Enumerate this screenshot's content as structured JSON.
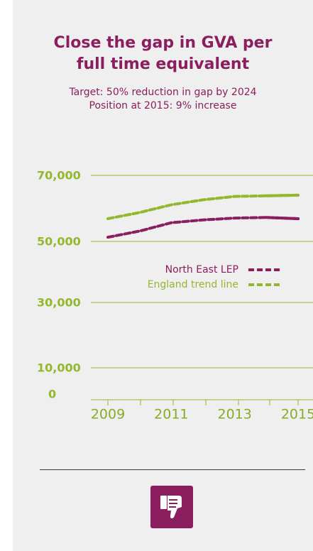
{
  "header": {
    "title_line1": "Close the gap in GVA per",
    "title_line2": "full time equivalent",
    "target_line": "Target: 50% reduction in gap by 2024",
    "position_line": "Position at 2015: 9% increase"
  },
  "chart_data": {
    "type": "line",
    "x": [
      2009,
      2010,
      2011,
      2012,
      2013,
      2014,
      2015
    ],
    "x_tick_labels": [
      "2009",
      "2011",
      "2013",
      "2015"
    ],
    "y_tick_labels": [
      "70,000",
      "50,000",
      "30,000",
      "10,000",
      "0"
    ],
    "series": [
      {
        "name": "North East LEP",
        "color": "#8a1e5e",
        "values": [
          50000,
          52000,
          54700,
          55600,
          56200,
          56400,
          56000
        ]
      },
      {
        "name": "England trend line",
        "color": "#93b82e",
        "values": [
          56000,
          58000,
          60500,
          62100,
          63200,
          63400,
          63600
        ]
      }
    ],
    "grid": true,
    "legend": "center"
  },
  "colors": {
    "accent": "#8a1e5e",
    "green": "#93b82e",
    "panel": "#efefef"
  },
  "footer": {
    "icon": "thumbs-down-icon"
  }
}
